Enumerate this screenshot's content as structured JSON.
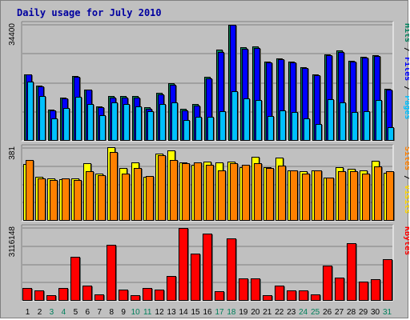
{
  "chart_data": {
    "type": "bar",
    "title": "Daily usage for July 2010",
    "x": [
      "1",
      "2",
      "3",
      "4",
      "5",
      "6",
      "7",
      "8",
      "9",
      "10",
      "11",
      "12",
      "13",
      "14",
      "15",
      "16",
      "17",
      "18",
      "19",
      "20",
      "21",
      "22",
      "23",
      "24",
      "25",
      "26",
      "27",
      "28",
      "29",
      "30",
      "31"
    ],
    "weekend_days": [
      "3",
      "4",
      "10",
      "11",
      "17",
      "18",
      "24",
      "25",
      "31"
    ],
    "panels": [
      {
        "name": "hits-files-pages",
        "max_label": "34400",
        "ymax": 34400,
        "side_labels": [
          {
            "text": "Hits",
            "color": "#00805c"
          },
          {
            "text": " / ",
            "color": "#000000"
          },
          {
            "text": "Files",
            "color": "#0000ff"
          },
          {
            "text": " / ",
            "color": "#000000"
          },
          {
            "text": "Pages",
            "color": "#00c0ff"
          }
        ],
        "series": [
          {
            "name": "Hits",
            "color": "#00805c",
            "values": [
              19800,
              16400,
              9200,
              12800,
              19200,
              15300,
              10200,
              13200,
              13200,
              13200,
              9900,
              14200,
              17000,
              9400,
              10800,
              19000,
              27100,
              34400,
              27700,
              28000,
              23600,
              24500,
              23600,
              21800,
              19800,
              25700,
              26800,
              23800,
              24900,
              25300,
              15500
            ]
          },
          {
            "name": "Files",
            "color": "#0000ff",
            "values": [
              19800,
              16100,
              8900,
              12600,
              19000,
              15100,
              9900,
              12900,
              12900,
              12900,
              9600,
              13800,
              16600,
              9100,
              10500,
              18600,
              26300,
              34400,
              27400,
              27600,
              23300,
              24300,
              23300,
              21500,
              19500,
              25500,
              26300,
              23500,
              24700,
              25100,
              15300
            ]
          },
          {
            "name": "Pages",
            "color": "#00c0ff",
            "values": [
              17500,
              13300,
              6700,
              9800,
              13100,
              10800,
              7600,
              11300,
              10900,
              10300,
              8800,
              10900,
              11400,
              6200,
              7000,
              7000,
              8800,
              14800,
              12600,
              12000,
              7300,
              8900,
              8500,
              6700,
              5100,
              12300,
              11300,
              8600,
              8800,
              12000,
              4100
            ]
          }
        ]
      },
      {
        "name": "visits-sites",
        "max_label": "381",
        "ymax": 381,
        "side_labels": [
          {
            "text": "Sites",
            "color": "#ff8000"
          },
          {
            "text": " / ",
            "color": "#000000"
          },
          {
            "text": "Visits",
            "color": "#ffd700"
          }
        ],
        "series": [
          {
            "name": "Visits",
            "color": "#ffff00",
            "values": [
              298,
              229,
              223,
              218,
              222,
              300,
              245,
              384,
              277,
              305,
              229,
              353,
              368,
              305,
              295,
              309,
              304,
              311,
              281,
              336,
              279,
              332,
              264,
              260,
              264,
              226,
              280,
              274,
              264,
              316,
              252
            ]
          },
          {
            "name": "Sites",
            "color": "#ff8000",
            "values": [
              319,
              222,
              214,
              220,
              215,
              258,
              240,
              361,
              248,
              275,
              233,
              342,
              319,
              302,
              304,
              291,
              264,
              302,
              291,
              300,
              278,
              290,
              262,
              249,
              262,
              226,
              258,
              260,
              248,
              285,
              260
            ]
          }
        ]
      },
      {
        "name": "kbytes",
        "max_label": "3116148",
        "ymax": 3116148,
        "side_labels": [
          {
            "text": "KBytes",
            "color": "#ff0000"
          }
        ],
        "series": [
          {
            "name": "KBytes",
            "color": "#ff0000",
            "values": [
              540000,
              450000,
              230000,
              540000,
              1870000,
              650000,
              260000,
              2390000,
              480000,
              250000,
              540000,
              480000,
              1050000,
              3116148,
              2030000,
              2890000,
              400000,
              2680000,
              950000,
              950000,
              230000,
              660000,
              460000,
              460000,
              270000,
              1500000,
              1000000,
              2460000,
              830000,
              930000,
              1780000
            ]
          }
        ]
      }
    ]
  }
}
